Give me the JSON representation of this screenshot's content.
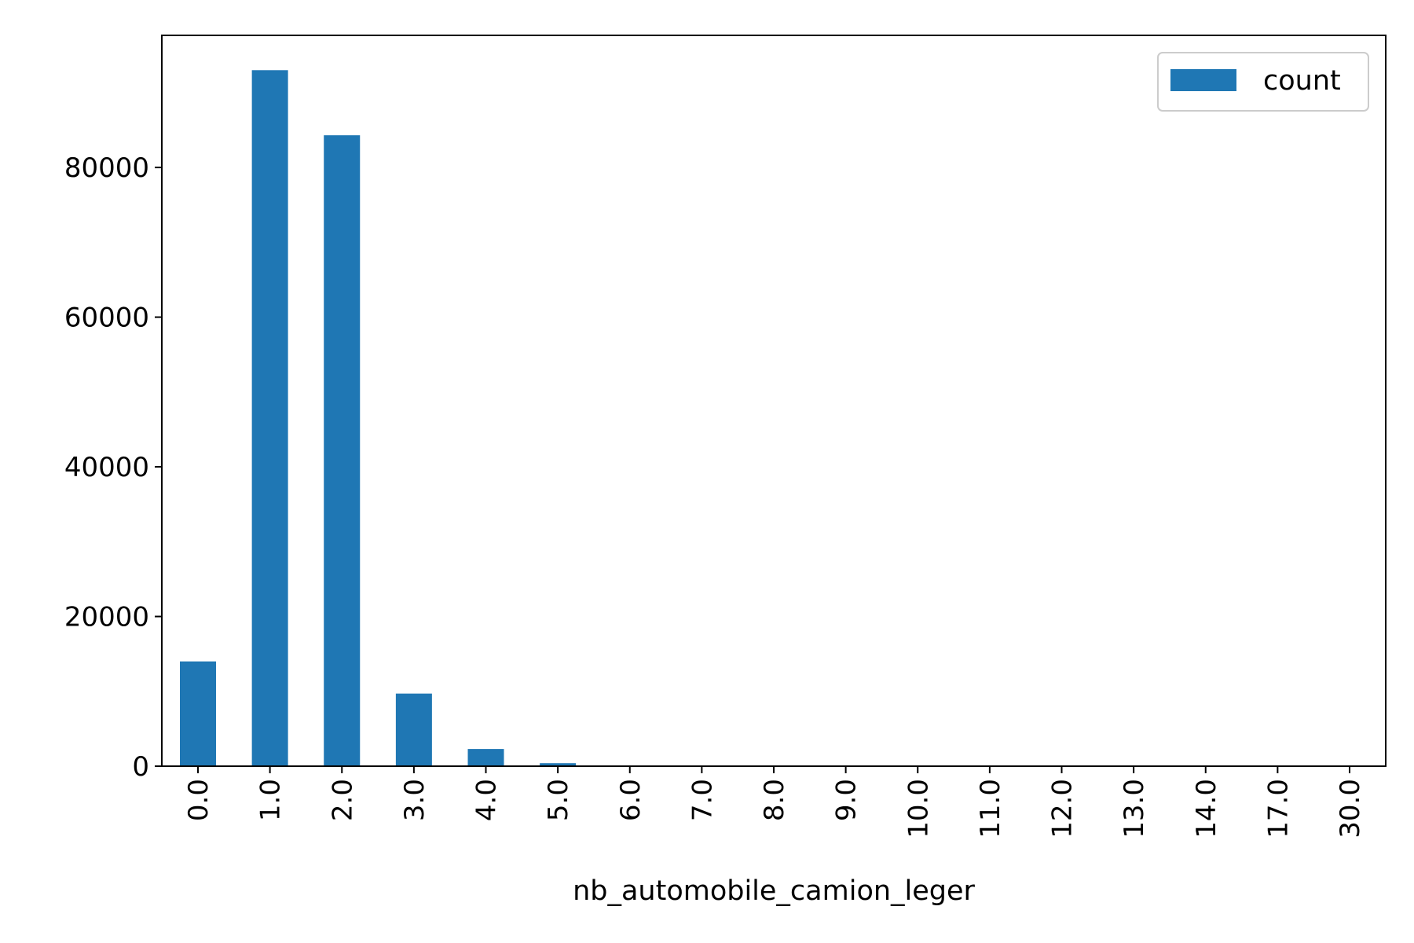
{
  "chart_data": {
    "type": "bar",
    "xlabel": "nb_automobile_camion_leger",
    "ylabel": "",
    "categories": [
      "0.0",
      "1.0",
      "2.0",
      "3.0",
      "4.0",
      "5.0",
      "6.0",
      "7.0",
      "8.0",
      "9.0",
      "10.0",
      "11.0",
      "12.0",
      "13.0",
      "14.0",
      "17.0",
      "30.0"
    ],
    "series": [
      {
        "name": "count",
        "color": "#1f77b4",
        "values": [
          14000,
          93000,
          84300,
          9700,
          2300,
          400,
          80,
          20,
          8,
          3,
          2,
          1,
          1,
          1,
          1,
          1,
          1
        ]
      }
    ],
    "yticks": [
      0,
      20000,
      40000,
      60000,
      80000
    ],
    "ylim": [
      0,
      97650
    ],
    "grid": false,
    "legend": {
      "position": "top-right",
      "entries": [
        "count"
      ]
    }
  }
}
